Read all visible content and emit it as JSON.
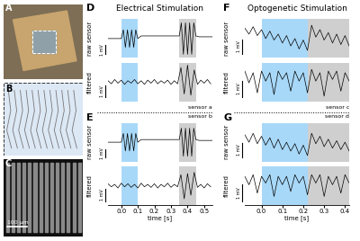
{
  "panels": {
    "A": {
      "label": "A"
    },
    "B": {
      "label": "B"
    },
    "C": {
      "label": "C",
      "scale_bar_label": "100 µm"
    }
  },
  "chart_data": [
    {
      "type": "line",
      "title": "Electrical Stimulation",
      "panel_top": "D",
      "panel_bottom": "E",
      "xlabel": "time [s]",
      "xlim": [
        -0.08,
        0.55
      ],
      "xticks": [
        0.0,
        0.1,
        0.2,
        0.3,
        0.4,
        0.5
      ],
      "windows": [
        {
          "range": [
            0.0,
            0.1
          ],
          "color": "#a8d8f8"
        },
        {
          "range": [
            0.35,
            0.45
          ],
          "color": "#cfcfcf"
        }
      ],
      "sensors": [
        {
          "name": "sensor a",
          "traces": [
            {
              "label": "raw sensor",
              "color": "#000000",
              "ylim": [
                -2.2,
                2.2
              ],
              "scale_bar": {
                "value": 1,
                "label": "1 mV"
              },
              "x": [
                -0.08,
                -0.01,
                0.0,
                0.0125,
                0.025,
                0.0375,
                0.05,
                0.0625,
                0.075,
                0.0875,
                0.1,
                0.12,
                0.34,
                0.35,
                0.3625,
                0.375,
                0.3875,
                0.4,
                0.4125,
                0.425,
                0.4375,
                0.45,
                0.47,
                0.55
              ],
              "values": [
                0,
                0,
                0,
                1,
                -1,
                1,
                -1,
                1,
                -1,
                1,
                0,
                0.3,
                0.3,
                0.3,
                1.8,
                -1.8,
                1.8,
                -1.8,
                1.8,
                -1.8,
                1.8,
                0.3,
                0.2,
                0.2
              ]
            },
            {
              "label": "filtered",
              "color": "#000000",
              "ylim": [
                -1.6,
                1.6
              ],
              "scale_bar": {
                "value": 1,
                "label": "1 mV"
              },
              "x": [
                -0.08,
                -0.06,
                -0.04,
                -0.02,
                0.0,
                0.02,
                0.04,
                0.06,
                0.08,
                0.1,
                0.12,
                0.14,
                0.16,
                0.18,
                0.2,
                0.22,
                0.24,
                0.26,
                0.28,
                0.3,
                0.32,
                0.34,
                0.36,
                0.38,
                0.4,
                0.42,
                0.44,
                0.46,
                0.48,
                0.5,
                0.52,
                0.54
              ],
              "values": [
                0.1,
                -0.15,
                0.2,
                -0.1,
                0.15,
                -0.2,
                0.1,
                -0.1,
                0.2,
                -0.15,
                0.1,
                -0.2,
                0.15,
                -0.1,
                0.2,
                -0.15,
                0.1,
                -0.1,
                0.15,
                -0.2,
                0.1,
                -0.15,
                1.2,
                -1.0,
                1.4,
                -1.1,
                1.0,
                -0.2,
                0.15,
                -0.1,
                0.2,
                -0.15
              ]
            }
          ]
        },
        {
          "name": "sensor b",
          "traces": [
            {
              "label": "raw sensor",
              "color": "#000000",
              "ylim": [
                -2.2,
                2.2
              ],
              "scale_bar": {
                "value": 1,
                "label": "1 mV"
              },
              "x": [
                -0.08,
                -0.01,
                0.0,
                0.0125,
                0.025,
                0.0375,
                0.05,
                0.0625,
                0.075,
                0.0875,
                0.1,
                0.12,
                0.34,
                0.35,
                0.3625,
                0.375,
                0.3875,
                0.4,
                0.4125,
                0.425,
                0.4375,
                0.45,
                0.47,
                0.55
              ],
              "values": [
                0,
                0,
                0,
                1,
                -1,
                1,
                -1,
                1,
                -1,
                1,
                0,
                0.3,
                0.3,
                0.3,
                1.6,
                -1.6,
                1.6,
                -1.6,
                1.6,
                -1.6,
                1.6,
                0.3,
                0.2,
                0.2
              ]
            },
            {
              "label": "filtered",
              "color": "#000000",
              "ylim": [
                -1.6,
                1.6
              ],
              "scale_bar": {
                "value": 1,
                "label": "1 mV"
              },
              "x": [
                -0.08,
                -0.06,
                -0.04,
                -0.02,
                0.0,
                0.02,
                0.04,
                0.06,
                0.08,
                0.1,
                0.12,
                0.14,
                0.16,
                0.18,
                0.2,
                0.22,
                0.24,
                0.26,
                0.28,
                0.3,
                0.32,
                0.34,
                0.36,
                0.38,
                0.4,
                0.42,
                0.44,
                0.46,
                0.48,
                0.5,
                0.52,
                0.54
              ],
              "values": [
                0.15,
                -0.1,
                0.1,
                -0.2,
                0.2,
                -0.1,
                0.15,
                -0.15,
                0.1,
                -0.2,
                0.2,
                -0.1,
                0.1,
                -0.15,
                0.15,
                -0.2,
                0.1,
                -0.1,
                0.2,
                -0.15,
                0.1,
                -0.1,
                0.9,
                -1.1,
                1.0,
                -0.8,
                1.1,
                -0.15,
                0.1,
                -0.2,
                0.15,
                -0.1
              ]
            }
          ]
        }
      ]
    },
    {
      "type": "line",
      "title": "Optogenetic Stimulation",
      "panel_top": "F",
      "panel_bottom": "G",
      "xlabel": "time [s]",
      "xlim": [
        -0.08,
        0.42
      ],
      "xticks": [
        0.0,
        0.1,
        0.2,
        0.3,
        0.4
      ],
      "windows": [
        {
          "range": [
            0.0,
            0.22
          ],
          "color": "#a8d8f8"
        },
        {
          "range": [
            0.22,
            0.42
          ],
          "color": "#cfcfcf"
        }
      ],
      "sensors": [
        {
          "name": "sensor c",
          "traces": [
            {
              "label": "raw sensor",
              "color": "#000000",
              "ylim": [
                -1.0,
                1.6
              ],
              "scale_bar": {
                "value": 1,
                "label": "1 mV"
              },
              "x": [
                -0.08,
                -0.06,
                -0.04,
                -0.02,
                0.0,
                0.02,
                0.04,
                0.06,
                0.08,
                0.1,
                0.12,
                0.14,
                0.16,
                0.18,
                0.2,
                0.22,
                0.24,
                0.26,
                0.28,
                0.3,
                0.32,
                0.34,
                0.36,
                0.38,
                0.4,
                0.42
              ],
              "values": [
                1.0,
                0.6,
                1.1,
                0.5,
                0.9,
                0.3,
                0.8,
                0.2,
                0.6,
                0.0,
                0.5,
                -0.2,
                0.3,
                -0.4,
                0.2,
                -0.5,
                1.2,
                0.4,
                0.9,
                0.2,
                0.7,
                0.0,
                0.6,
                -0.1,
                0.5,
                -0.2
              ]
            },
            {
              "label": "filtered",
              "color": "#000000",
              "ylim": [
                -1.5,
                0.8
              ],
              "scale_bar": {
                "value": 1,
                "label": "1 mV"
              },
              "x": [
                -0.08,
                -0.06,
                -0.04,
                -0.02,
                0.0,
                0.02,
                0.04,
                0.06,
                0.08,
                0.1,
                0.12,
                0.14,
                0.16,
                0.18,
                0.2,
                0.22,
                0.24,
                0.26,
                0.28,
                0.3,
                0.32,
                0.34,
                0.36,
                0.38,
                0.4,
                0.42
              ],
              "values": [
                0.3,
                -0.4,
                0.2,
                -1.0,
                0.3,
                -0.3,
                0.2,
                -1.1,
                0.3,
                -0.2,
                0.2,
                -0.9,
                0.3,
                -0.3,
                0.2,
                -1.0,
                0.4,
                -0.3,
                0.2,
                -1.2,
                0.3,
                -0.2,
                0.3,
                -0.9,
                0.2,
                -0.3
              ]
            }
          ]
        },
        {
          "name": "sensor d",
          "traces": [
            {
              "label": "raw sensor",
              "color": "#000000",
              "ylim": [
                -1.0,
                1.6
              ],
              "scale_bar": {
                "value": 1,
                "label": "1 mV"
              },
              "x": [
                -0.08,
                -0.06,
                -0.04,
                -0.02,
                0.0,
                0.02,
                0.04,
                0.06,
                0.08,
                0.1,
                0.12,
                0.14,
                0.16,
                0.18,
                0.2,
                0.22,
                0.24,
                0.26,
                0.28,
                0.3,
                0.32,
                0.34,
                0.36,
                0.38,
                0.4,
                0.42
              ],
              "values": [
                0.8,
                0.3,
                0.9,
                0.2,
                0.7,
                0.1,
                0.6,
                -0.1,
                0.5,
                -0.2,
                0.3,
                -0.3,
                0.2,
                -0.5,
                0.1,
                -0.6,
                0.9,
                0.2,
                0.7,
                0.0,
                0.5,
                -0.1,
                0.4,
                -0.2,
                0.3,
                -0.3
              ]
            },
            {
              "label": "filtered",
              "color": "#000000",
              "ylim": [
                -1.5,
                0.8
              ],
              "scale_bar": {
                "value": 1,
                "label": "1 mV"
              },
              "x": [
                -0.08,
                -0.06,
                -0.04,
                -0.02,
                0.0,
                0.02,
                0.04,
                0.06,
                0.08,
                0.1,
                0.12,
                0.14,
                0.16,
                0.18,
                0.2,
                0.22,
                0.24,
                0.26,
                0.28,
                0.3,
                0.32,
                0.34,
                0.36,
                0.38,
                0.4,
                0.42
              ],
              "values": [
                0.2,
                -0.3,
                0.3,
                -0.8,
                0.2,
                -0.2,
                0.3,
                -1.0,
                0.2,
                -0.3,
                0.2,
                -0.7,
                0.3,
                -0.2,
                0.2,
                -0.9,
                0.3,
                -0.2,
                0.3,
                -1.0,
                0.2,
                -0.3,
                0.2,
                -0.8,
                0.3,
                -0.2
              ]
            }
          ]
        }
      ]
    }
  ]
}
